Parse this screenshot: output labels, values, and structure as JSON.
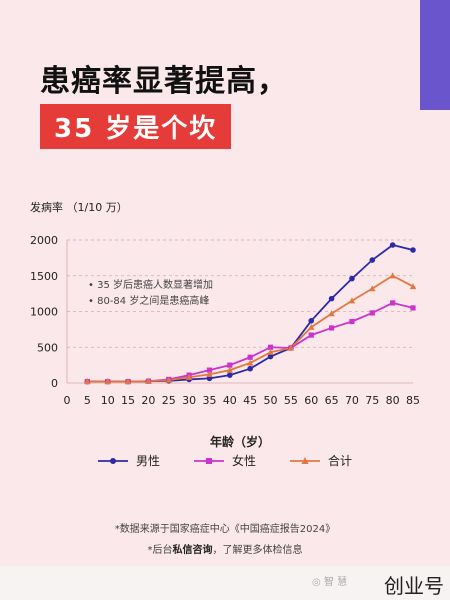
{
  "headline": "患癌率显著提高，",
  "subhead": "35 岁是个坎",
  "chart_data": {
    "type": "line",
    "ylabel": "发病率 （1/10 万）",
    "xlabel": "年龄（岁）",
    "ylim": [
      0,
      2000
    ],
    "yticks": [
      0,
      500,
      1000,
      1500,
      2000
    ],
    "xlim": [
      0,
      85
    ],
    "x": [
      5,
      10,
      15,
      20,
      25,
      30,
      35,
      40,
      45,
      50,
      55,
      60,
      65,
      70,
      75,
      80,
      85
    ],
    "xticks": [
      0,
      5,
      10,
      15,
      20,
      25,
      30,
      35,
      40,
      45,
      50,
      55,
      60,
      65,
      70,
      75,
      80,
      85
    ],
    "grid": true,
    "legend_position": "bottom",
    "series": [
      {
        "name": "男性",
        "color": "#2c2aa8",
        "marker": "circle",
        "values": [
          20,
          20,
          20,
          25,
          30,
          50,
          65,
          110,
          200,
          370,
          490,
          870,
          1180,
          1460,
          1720,
          1930,
          1860
        ]
      },
      {
        "name": "女性",
        "color": "#cc33cc",
        "marker": "square",
        "values": [
          20,
          20,
          20,
          25,
          50,
          110,
          180,
          250,
          360,
          500,
          490,
          670,
          770,
          860,
          980,
          1120,
          1050
        ]
      },
      {
        "name": "合计",
        "color": "#e07840",
        "marker": "triangle",
        "values": [
          20,
          20,
          20,
          25,
          40,
          80,
          120,
          180,
          280,
          430,
          490,
          780,
          970,
          1150,
          1320,
          1500,
          1350
        ]
      }
    ],
    "annotations": [
      "35 岁后患癌人数显著增加",
      "80-84 岁之间是患癌高峰"
    ]
  },
  "footnotes": {
    "source": "*数据来源于国家癌症中心《中国癌症报告2024》",
    "contact_prefix": "*后台",
    "contact_bold": "私信咨询",
    "contact_suffix": "，了解更多体检信息"
  },
  "brand": "创业号",
  "watermark": "◎ 智 慧"
}
